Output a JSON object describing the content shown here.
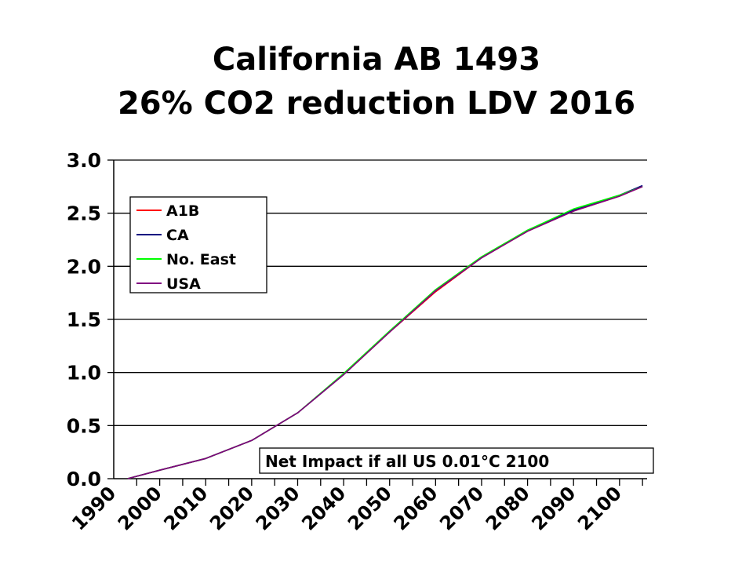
{
  "chart_data": {
    "type": "line",
    "title_lines": [
      "California AB 1493",
      "26% CO2 reduction LDV 2016"
    ],
    "xlabel": "",
    "ylabel": "",
    "xlim": [
      1990,
      2106
    ],
    "ylim": [
      0,
      3.0
    ],
    "y_ticks": [
      "0.0",
      "0.5",
      "1.0",
      "1.5",
      "2.0",
      "2.5",
      "3.0"
    ],
    "x_ticks": [
      "1990",
      "2000",
      "2010",
      "2020",
      "2030",
      "2040",
      "2050",
      "2060",
      "2070",
      "2080",
      "2090",
      "2100"
    ],
    "grid": "horizontal",
    "legend_position": "top-left",
    "annotation": "Net Impact if all US 0.01°C 2100",
    "x": [
      1993,
      2000,
      2010,
      2020,
      2030,
      2040,
      2050,
      2060,
      2070,
      2080,
      2090,
      2100,
      2105
    ],
    "series": [
      {
        "name": "A1B",
        "color": "#ff0000",
        "values": [
          0.0,
          0.08,
          0.19,
          0.36,
          0.62,
          0.98,
          1.38,
          1.76,
          2.08,
          2.33,
          2.52,
          2.66,
          2.75
        ]
      },
      {
        "name": "CA",
        "color": "#000080",
        "values": [
          0.0,
          0.08,
          0.19,
          0.36,
          0.62,
          0.98,
          1.39,
          1.77,
          2.08,
          2.34,
          2.53,
          2.67,
          2.76
        ]
      },
      {
        "name": "No. East",
        "color": "#00ff00",
        "values": [
          0.0,
          0.08,
          0.19,
          0.36,
          0.62,
          0.99,
          1.39,
          1.78,
          2.09,
          2.34,
          2.54,
          2.67,
          2.75
        ]
      },
      {
        "name": "USA",
        "color": "#800080",
        "values": [
          0.0,
          0.08,
          0.19,
          0.36,
          0.62,
          0.98,
          1.38,
          1.77,
          2.08,
          2.33,
          2.52,
          2.66,
          2.75
        ]
      }
    ]
  }
}
